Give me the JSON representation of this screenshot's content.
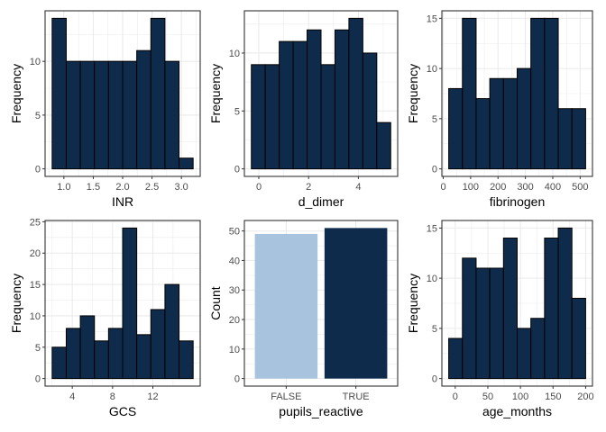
{
  "colors": {
    "bar_fill": "#0f2b4c",
    "bar_stroke": "#000000",
    "false_fill": "#a7c3dd",
    "grid": "#ebebeb",
    "panel_border": "#333333",
    "tick_label": "#4d4d4d"
  },
  "chart_data": [
    {
      "type": "bar",
      "subtype": "histogram",
      "xlabel": "INR",
      "ylabel": "Frequency",
      "bins": [
        [
          0.8,
          1.04
        ],
        [
          1.04,
          1.28
        ],
        [
          1.28,
          1.52
        ],
        [
          1.52,
          1.76
        ],
        [
          1.76,
          2.0
        ],
        [
          2.0,
          2.24
        ],
        [
          2.24,
          2.48
        ],
        [
          2.48,
          2.72
        ],
        [
          2.72,
          2.96
        ],
        [
          2.96,
          3.2
        ]
      ],
      "values": [
        14,
        10,
        10,
        10,
        10,
        10,
        11,
        14,
        10,
        1
      ],
      "xlim": [
        0.68,
        3.32
      ],
      "ylim": [
        -0.7,
        14.7
      ],
      "xticks": [
        1.0,
        1.5,
        2.0,
        2.5,
        3.0
      ],
      "xtick_labels": [
        "1.0",
        "1.5",
        "2.0",
        "2.5",
        "3.0"
      ],
      "yticks": [
        0,
        5,
        10
      ],
      "ytick_labels": [
        "0",
        "5",
        "10"
      ],
      "grid": true
    },
    {
      "type": "bar",
      "subtype": "histogram",
      "xlabel": "d_dimer",
      "ylabel": "Frequency",
      "bins": [
        [
          -0.3,
          0.26
        ],
        [
          0.26,
          0.82
        ],
        [
          0.82,
          1.38
        ],
        [
          1.38,
          1.94
        ],
        [
          1.94,
          2.5
        ],
        [
          2.5,
          3.06
        ],
        [
          3.06,
          3.62
        ],
        [
          3.62,
          4.18
        ],
        [
          4.18,
          4.74
        ],
        [
          4.74,
          5.3
        ]
      ],
      "values": [
        9,
        9,
        11,
        11,
        12,
        9,
        12,
        13,
        10,
        4
      ],
      "xlim": [
        -0.58,
        5.58
      ],
      "ylim": [
        -0.65,
        13.65
      ],
      "xticks": [
        0,
        2,
        4
      ],
      "xtick_labels": [
        "0",
        "2",
        "4"
      ],
      "yticks": [
        0,
        5,
        10
      ],
      "ytick_labels": [
        "0",
        "5",
        "10"
      ],
      "grid": true
    },
    {
      "type": "bar",
      "subtype": "histogram",
      "xlabel": "fibrinogen",
      "ylabel": "Frequency",
      "bins": [
        [
          20,
          70
        ],
        [
          70,
          120
        ],
        [
          120,
          170
        ],
        [
          170,
          220
        ],
        [
          220,
          270
        ],
        [
          270,
          320
        ],
        [
          320,
          370
        ],
        [
          370,
          420
        ],
        [
          420,
          470
        ],
        [
          470,
          520
        ]
      ],
      "values": [
        8,
        15,
        7,
        9,
        9,
        10,
        15,
        15,
        6,
        6
      ],
      "xlim": [
        -5,
        545
      ],
      "ylim": [
        -0.75,
        15.75
      ],
      "xticks": [
        0,
        100,
        200,
        300,
        400,
        500
      ],
      "xtick_labels": [
        "0",
        "100",
        "200",
        "300",
        "400",
        "500"
      ],
      "yticks": [
        0,
        5,
        10,
        15
      ],
      "ytick_labels": [
        "0",
        "5",
        "10",
        "15"
      ],
      "grid": true
    },
    {
      "type": "bar",
      "subtype": "histogram",
      "xlabel": "GCS",
      "ylabel": "Frequency",
      "bins": [
        [
          2.0,
          3.4
        ],
        [
          3.4,
          4.8
        ],
        [
          4.8,
          6.2
        ],
        [
          6.2,
          7.6
        ],
        [
          7.6,
          9.0
        ],
        [
          9.0,
          10.4
        ],
        [
          10.4,
          11.8
        ],
        [
          11.8,
          13.2
        ],
        [
          13.2,
          14.6
        ],
        [
          14.6,
          16.0
        ]
      ],
      "values": [
        5,
        8,
        10,
        6,
        8,
        24,
        7,
        11,
        15,
        6
      ],
      "xlim": [
        1.3,
        16.7
      ],
      "ylim": [
        -1.2,
        25.2
      ],
      "xticks": [
        4,
        8,
        12
      ],
      "xtick_labels": [
        "4",
        "8",
        "12"
      ],
      "yticks": [
        0,
        5,
        10,
        15,
        20,
        25
      ],
      "ytick_labels": [
        "0",
        "5",
        "10",
        "15",
        "20",
        "25"
      ],
      "grid": true
    },
    {
      "type": "bar",
      "categories": [
        "FALSE",
        "TRUE"
      ],
      "values": [
        49,
        51
      ],
      "xlabel": "pupils_reactive",
      "ylabel": "Count",
      "xlim": [
        0.4,
        2.6
      ],
      "ylim": [
        -2.55,
        53.55
      ],
      "yticks": [
        0,
        10,
        20,
        30,
        40,
        50
      ],
      "ytick_labels": [
        "0",
        "10",
        "20",
        "30",
        "40",
        "50"
      ],
      "bar_colors": [
        "#a7c3dd",
        "#0f2b4c"
      ],
      "grid": true
    },
    {
      "type": "bar",
      "subtype": "histogram",
      "xlabel": "age_months",
      "ylabel": "Frequency",
      "bins": [
        [
          -10,
          11
        ],
        [
          11,
          32
        ],
        [
          32,
          53
        ],
        [
          53,
          74
        ],
        [
          74,
          95
        ],
        [
          95,
          116
        ],
        [
          116,
          137
        ],
        [
          137,
          158
        ],
        [
          158,
          179
        ],
        [
          179,
          200
        ]
      ],
      "values": [
        4,
        12,
        11,
        11,
        14,
        5,
        6,
        14,
        15,
        8
      ],
      "xlim": [
        -20.5,
        210.5
      ],
      "ylim": [
        -0.75,
        15.75
      ],
      "xticks": [
        0,
        50,
        100,
        150,
        200
      ],
      "xtick_labels": [
        "0",
        "50",
        "100",
        "150",
        "200"
      ],
      "yticks": [
        0,
        5,
        10,
        15
      ],
      "ytick_labels": [
        "0",
        "5",
        "10",
        "15"
      ],
      "grid": true
    }
  ]
}
